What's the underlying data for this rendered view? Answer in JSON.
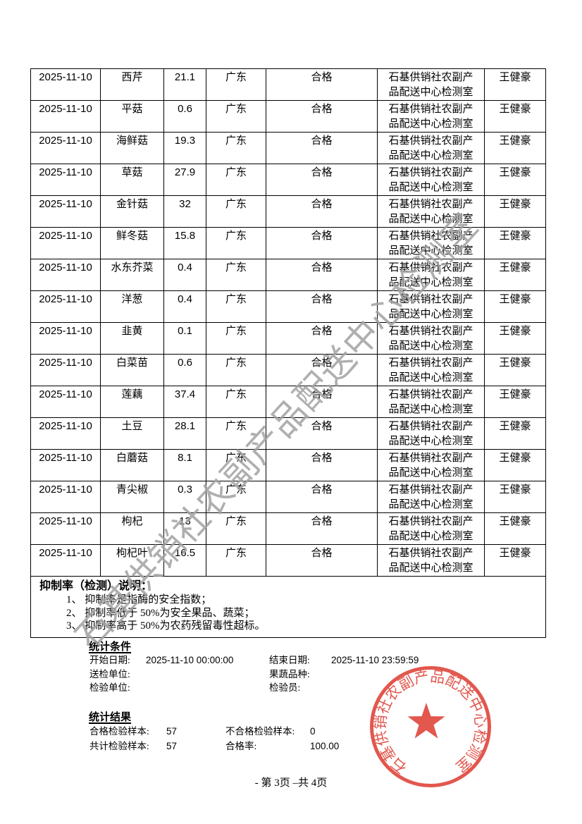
{
  "table": {
    "rows": [
      [
        "2025-11-10",
        "西芹",
        "21.1",
        "广东",
        "合格",
        "石基供销社农副产\n品配送中心检测室",
        "王健豪"
      ],
      [
        "2025-11-10",
        "平菇",
        "0.6",
        "广东",
        "合格",
        "石基供销社农副产\n品配送中心检测室",
        "王健豪"
      ],
      [
        "2025-11-10",
        "海鲜菇",
        "19.3",
        "广东",
        "合格",
        "石基供销社农副产\n品配送中心检测室",
        "王健豪"
      ],
      [
        "2025-11-10",
        "草菇",
        "27.9",
        "广东",
        "合格",
        "石基供销社农副产\n品配送中心检测室",
        "王健豪"
      ],
      [
        "2025-11-10",
        "金针菇",
        "32",
        "广东",
        "合格",
        "石基供销社农副产\n品配送中心检测室",
        "王健豪"
      ],
      [
        "2025-11-10",
        "鲜冬菇",
        "15.8",
        "广东",
        "合格",
        "石基供销社农副产\n品配送中心检测室",
        "王健豪"
      ],
      [
        "2025-11-10",
        "水东芥菜",
        "0.4",
        "广东",
        "合格",
        "石基供销社农副产\n品配送中心检测室",
        "王健豪"
      ],
      [
        "2025-11-10",
        "洋葱",
        "0.4",
        "广东",
        "合格",
        "石基供销社农副产\n品配送中心检测室",
        "王健豪"
      ],
      [
        "2025-11-10",
        "韭黄",
        "0.1",
        "广东",
        "合格",
        "石基供销社农副产\n品配送中心检测室",
        "王健豪"
      ],
      [
        "2025-11-10",
        "白菜苗",
        "0.6",
        "广东",
        "合格",
        "石基供销社农副产\n品配送中心检测室",
        "王健豪"
      ],
      [
        "2025-11-10",
        "莲藕",
        "37.4",
        "广东",
        "合格",
        "石基供销社农副产\n品配送中心检测室",
        "王健豪"
      ],
      [
        "2025-11-10",
        "土豆",
        "28.1",
        "广东",
        "合格",
        "石基供销社农副产\n品配送中心检测室",
        "王健豪"
      ],
      [
        "2025-11-10",
        "白蘑菇",
        "8.1",
        "广东",
        "合格",
        "石基供销社农副产\n品配送中心检测室",
        "王健豪"
      ],
      [
        "2025-11-10",
        "青尖椒",
        "0.3",
        "广东",
        "合格",
        "石基供销社农副产\n品配送中心检测室",
        "王健豪"
      ],
      [
        "2025-11-10",
        "枸杞",
        "13",
        "广东",
        "合格",
        "石基供销社农副产\n品配送中心检测室",
        "王健豪"
      ],
      [
        "2025-11-10",
        "枸杞叶",
        "16.5",
        "广东",
        "合格",
        "石基供销社农副产\n品配送中心检测室",
        "王健豪"
      ]
    ]
  },
  "note": {
    "title": "抑制率（检测）说明：",
    "items": [
      "1、 抑制率是指酶的安全指数；",
      "2、 抑制率低于 50%为安全果品、蔬菜；",
      "3、 抑制率高于 50%为农药残留毒性超标。"
    ]
  },
  "stats_conditions": {
    "title": "统计条件",
    "fields": [
      {
        "label": "开始日期:",
        "value": "2025-11-10 00:00:00"
      },
      {
        "label": "结束日期:",
        "value": "2025-11-10 23:59:59"
      },
      {
        "label": "送检单位:",
        "value": ""
      },
      {
        "label": "果蔬品种:",
        "value": ""
      },
      {
        "label": "检验单位:",
        "value": ""
      },
      {
        "label": "检验员:",
        "value": ""
      }
    ]
  },
  "stats_results": {
    "title": "统计结果",
    "fields": [
      {
        "label": "合格检验样本:",
        "value": "57"
      },
      {
        "label": "不合格检验样本:",
        "value": "0"
      },
      {
        "label": "共计检验样本:",
        "value": "57"
      },
      {
        "label": "合格率:",
        "value": "100.00"
      }
    ]
  },
  "footer": {
    "text": "- 第 3页 –共 4页"
  },
  "watermark": {
    "text": "石基供销社农副产品配送中心检测室",
    "color": "#a2a2a2"
  },
  "stamp": {
    "text": "石基供销社农副产品配送中心检测室",
    "color": "#e04b41"
  }
}
